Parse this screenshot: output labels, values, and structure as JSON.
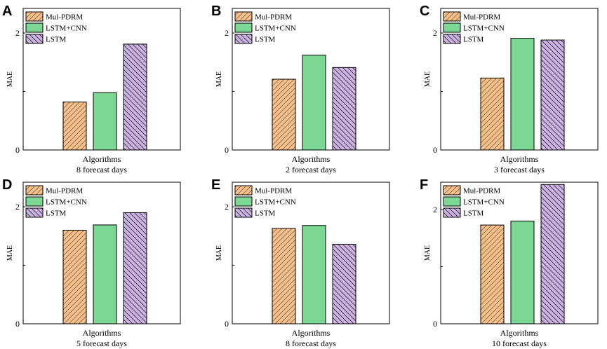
{
  "figure": {
    "colors": {
      "Mul-PDRM": "#f7c08a",
      "LSTM+CNN": "#7ed895",
      "LSTM": "#cbb5e0",
      "stroke": "#000000"
    }
  },
  "chart_data": [
    {
      "panel": "A",
      "type": "bar",
      "categories": [
        "Mul-PDRM",
        "LSTM+CNN",
        "LSTM"
      ],
      "values": [
        0.82,
        0.98,
        1.81
      ],
      "legend": [
        "Mul-PDRM",
        "LSTM+CNN",
        "LSTM"
      ],
      "xlabel": "Algorithms",
      "subtitle": "8 forecast days",
      "ylabel": "MAE",
      "yticks": [
        "0",
        "2"
      ],
      "ylim": [
        0,
        2.42
      ],
      "legend_position": "top-left",
      "grid": false
    },
    {
      "panel": "B",
      "type": "bar",
      "categories": [
        "Mul-PDRM",
        "LSTM+CNN",
        "LSTM"
      ],
      "values": [
        1.21,
        1.62,
        1.41
      ],
      "legend": [
        "Mul-PDRM",
        "LSTM+CNN",
        "LSTM"
      ],
      "xlabel": "Algorithms",
      "subtitle": "2 forecast days",
      "ylabel": "MAE",
      "yticks": [
        "0",
        "2"
      ],
      "ylim": [
        0,
        2.42
      ],
      "legend_position": "top-left",
      "grid": false
    },
    {
      "panel": "C",
      "type": "bar",
      "categories": [
        "Mul-PDRM",
        "LSTM+CNN",
        "LSTM"
      ],
      "values": [
        1.23,
        1.91,
        1.88
      ],
      "legend": [
        "Mul-PDRM",
        "LSTM+CNN",
        "LSTM"
      ],
      "xlabel": "Algorithms",
      "subtitle": "3 forecast days",
      "ylabel": "MAE",
      "yticks": [
        "0",
        "2"
      ],
      "ylim": [
        0,
        2.42
      ],
      "legend_position": "top-left",
      "grid": false
    },
    {
      "panel": "D",
      "type": "bar",
      "categories": [
        "Mul-PDRM",
        "LSTM+CNN",
        "LSTM"
      ],
      "values": [
        1.6,
        1.69,
        1.9
      ],
      "legend": [
        "Mul-PDRM",
        "LSTM+CNN",
        "LSTM"
      ],
      "xlabel": "Algorithms",
      "subtitle": "5 forecast days",
      "ylabel": "MAE",
      "yticks": [
        "0",
        "2"
      ],
      "ylim": [
        0,
        2.42
      ],
      "legend_position": "top-left",
      "grid": false
    },
    {
      "panel": "E",
      "type": "bar",
      "categories": [
        "Mul-PDRM",
        "LSTM+CNN",
        "LSTM"
      ],
      "values": [
        1.63,
        1.68,
        1.36
      ],
      "legend": [
        "Mul-PDRM",
        "LSTM+CNN",
        "LSTM"
      ],
      "xlabel": "Algorithms",
      "subtitle": "8 forecast days",
      "ylabel": "MAE",
      "yticks": [
        "0",
        "2"
      ],
      "ylim": [
        0,
        2.42
      ],
      "legend_position": "top-left",
      "grid": false
    },
    {
      "panel": "F",
      "type": "bar",
      "categories": [
        "Mul-PDRM",
        "LSTM+CNN",
        "LSTM"
      ],
      "values": [
        1.73,
        1.8,
        2.44
      ],
      "legend": [
        "Mul-PDRM",
        "LSTM+CNN",
        "LSTM"
      ],
      "xlabel": "Algorithms",
      "subtitle": "10 forecast days",
      "ylabel": "MAE",
      "yticks": [
        "0",
        "2"
      ],
      "ylim": [
        0,
        2.48
      ],
      "legend_position": "top-left",
      "grid": false
    }
  ]
}
